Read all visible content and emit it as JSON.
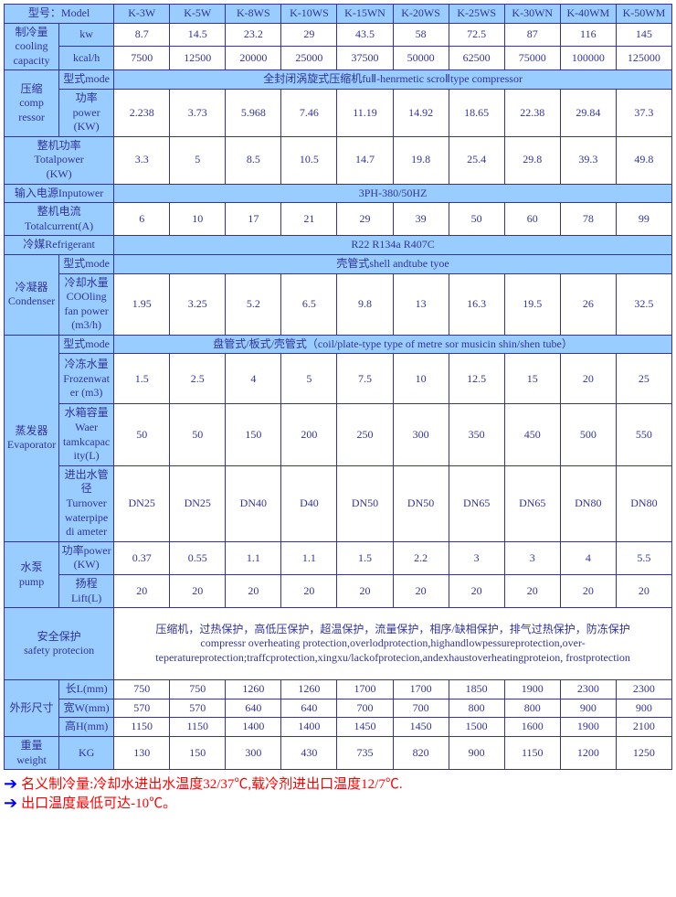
{
  "models": [
    "K-3W",
    "K-5W",
    "K-8WS",
    "K-10WS",
    "K-15WN",
    "K-20WS",
    "K-25WS",
    "K-30WN",
    "K-40WM",
    "K-50WM"
  ],
  "headers": {
    "model": "型号：Model",
    "cooling": "制冷量\ncooling\ncapacity",
    "cooling_kw": "kw",
    "cooling_kcal": "kcal/h",
    "compressor": "压缩\ncomp\nressor",
    "comp_mode": "型式mode",
    "comp_power": "功率\npower\n(KW)",
    "totalpower": "整机功率\nTotalpower\n(KW)",
    "inputpower": "输入电源Inputower",
    "totalcurrent": "整机电流\nTotalcurrent(A)",
    "refrigerant": "冷媒Refrigerant",
    "condenser": "冷凝器\nCondenser",
    "cond_mode": "型式mode",
    "cond_flow": "冷却水量\nCOOling\nfan power\n(m3/h)",
    "evaporator": "蒸发器\nEvaporator",
    "evap_mode": "型式mode",
    "evap_frozen": "冷冻水量\nFrozenwat\ner (m3)",
    "evap_tank": "水箱容量\nWaer\ntamkcapac\nity(L)",
    "evap_pipe": "进出水管径\nTurnover\nwaterpipe\ndi ameter",
    "pump": "水泵\npump",
    "pump_power": "功率power\n(KW)",
    "pump_lift": "扬程\nLift(L)",
    "safety": "安全保护\nsafety protecion",
    "dims": "外形尺寸",
    "dim_l": "长L(mm)",
    "dim_w": "宽W(mm)",
    "dim_h": "高H(mm)",
    "weight": "重量\nweight",
    "weight_unit": "KG"
  },
  "spanvals": {
    "compressor_mode": "全封闭涡旋式压缩机fuⅡ-henrmetic scroⅡtype compressor",
    "inputpower": "3PH-380/50HZ",
    "refrigerant": "R22 R134a R407C",
    "condenser_mode": "壳管式shell andtube tyoe",
    "evaporator_mode": "盘管式/板式/壳管式（coil/plate-type type of metre sor musicin shin/shen tube）",
    "safety": "压缩机，过热保护，高低压保护，超温保护，流量保护，相序/缺相保护，排气过热保护，防冻保护\ncompressr overheating protection,overlodprotection,highandlowpessureprotection,over-teperatureprotection;traffcprotection,xingxu/lackofprotecion,andexhaustoverheatingproteion,     frostprotection"
  },
  "rows": {
    "cooling_kw": [
      "8.7",
      "14.5",
      "23.2",
      "29",
      "43.5",
      "58",
      "72.5",
      "87",
      "116",
      "145"
    ],
    "cooling_kcal": [
      "7500",
      "12500",
      "20000",
      "25000",
      "37500",
      "50000",
      "62500",
      "75000",
      "100000",
      "125000"
    ],
    "comp_power": [
      "2.238",
      "3.73",
      "5.968",
      "7.46",
      "11.19",
      "14.92",
      "18.65",
      "22.38",
      "29.84",
      "37.3"
    ],
    "totalpower": [
      "3.3",
      "5",
      "8.5",
      "10.5",
      "14.7",
      "19.8",
      "25.4",
      "29.8",
      "39.3",
      "49.8"
    ],
    "totalcurrent": [
      "6",
      "10",
      "17",
      "21",
      "29",
      "39",
      "50",
      "60",
      "78",
      "99"
    ],
    "cond_flow": [
      "1.95",
      "3.25",
      "5.2",
      "6.5",
      "9.8",
      "13",
      "16.3",
      "19.5",
      "26",
      "32.5"
    ],
    "evap_frozen": [
      "1.5",
      "2.5",
      "4",
      "5",
      "7.5",
      "10",
      "12.5",
      "15",
      "20",
      "25"
    ],
    "evap_tank": [
      "50",
      "50",
      "150",
      "200",
      "250",
      "300",
      "350",
      "450",
      "500",
      "550"
    ],
    "evap_pipe": [
      "DN25",
      "DN25",
      "DN40",
      "D40",
      "DN50",
      "DN50",
      "DN65",
      "DN65",
      "DN80",
      "DN80"
    ],
    "pump_power": [
      "0.37",
      "0.55",
      "1.1",
      "1.1",
      "1.5",
      "2.2",
      "3",
      "3",
      "4",
      "5.5"
    ],
    "pump_lift": [
      "20",
      "20",
      "20",
      "20",
      "20",
      "20",
      "20",
      "20",
      "20",
      "20"
    ],
    "dim_l": [
      "750",
      "750",
      "1260",
      "1260",
      "1700",
      "1700",
      "1850",
      "1900",
      "2300",
      "2300"
    ],
    "dim_w": [
      "570",
      "570",
      "640",
      "640",
      "700",
      "700",
      "800",
      "800",
      "900",
      "900"
    ],
    "dim_h": [
      "1150",
      "1150",
      "1400",
      "1400",
      "1450",
      "1450",
      "1500",
      "1600",
      "1900",
      "2100"
    ],
    "weight": [
      "130",
      "150",
      "300",
      "430",
      "735",
      "820",
      "900",
      "1150",
      "1200",
      "1250"
    ]
  },
  "footnotes": {
    "line1": "名义制冷量:冷却水进出水温度32/37℃,载冷剂进出口温度12/7℃.",
    "line2": "出口温度最低可达-10℃。"
  },
  "style": {
    "header_bg": "#99ccff",
    "border_color": "#333399",
    "text_color": "#333399",
    "note_color": "#ff0000",
    "arrow_color": "#0000ff"
  }
}
